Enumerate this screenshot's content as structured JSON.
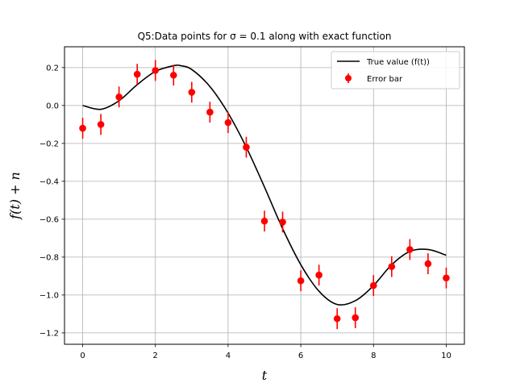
{
  "chart_data": {
    "type": "scatter",
    "title": "Q5:Data points for σ = 0.1 along with exact function",
    "xlabel": "t",
    "ylabel": "f(t) + n",
    "xlim": [
      -0.5,
      10.5
    ],
    "ylim": [
      -1.26,
      0.31
    ],
    "xticks": [
      0,
      2,
      4,
      6,
      8,
      10
    ],
    "yticks": [
      -1.2,
      -1.0,
      -0.8,
      -0.6,
      -0.4,
      -0.2,
      0.0,
      0.2
    ],
    "xtick_labels": [
      "0",
      "2",
      "4",
      "6",
      "8",
      "10"
    ],
    "ytick_labels": [
      "−1.2",
      "−1.0",
      "−0.8",
      "−0.6",
      "−0.4",
      "−0.2",
      "0.0",
      "0.2"
    ],
    "grid": true,
    "legend_position": "top-right",
    "series": [
      {
        "name": "True value (f(t))",
        "kind": "line",
        "color": "#000000",
        "x": [
          0,
          0.5,
          1,
          1.5,
          2,
          2.5,
          2.7,
          3,
          3.5,
          4,
          4.5,
          5,
          5.5,
          6,
          6.5,
          7,
          7.5,
          8,
          8.5,
          9,
          9.5,
          10
        ],
        "y": [
          0.0,
          -0.02,
          0.025,
          0.11,
          0.18,
          0.21,
          0.21,
          0.19,
          0.1,
          -0.04,
          -0.22,
          -0.43,
          -0.65,
          -0.84,
          -0.98,
          -1.05,
          -1.03,
          -0.95,
          -0.84,
          -0.77,
          -0.76,
          -0.79
        ]
      },
      {
        "name": "Error bar",
        "kind": "errorbar",
        "color": "#ff0000",
        "error": 0.055,
        "x": [
          0,
          0.5,
          1,
          1.5,
          2,
          2.5,
          3,
          3.5,
          4,
          4.5,
          5,
          5.5,
          6,
          6.5,
          7,
          7.5,
          8,
          8.5,
          9,
          9.5,
          10
        ],
        "y": [
          -0.12,
          -0.1,
          0.045,
          0.165,
          0.185,
          0.16,
          0.07,
          -0.035,
          -0.09,
          -0.22,
          -0.61,
          -0.615,
          -0.925,
          -0.895,
          -1.125,
          -1.12,
          -0.95,
          -0.85,
          -0.76,
          -0.835,
          -0.91
        ]
      }
    ]
  }
}
